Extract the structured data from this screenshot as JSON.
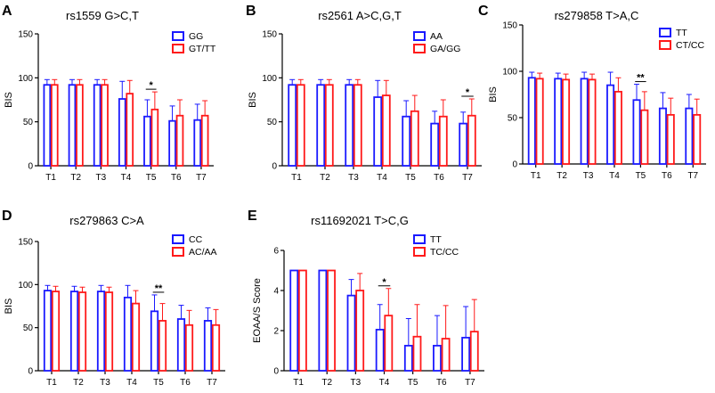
{
  "figure": {
    "colors": {
      "group1": "#1a1aff",
      "group2": "#ff1a1a",
      "axis": "#000000"
    }
  },
  "chart_data": [
    {
      "panel": "A",
      "type": "bar",
      "title": "rs1559 G>C,T",
      "xlabel": "",
      "ylabel": "BIS",
      "ylim": [
        0,
        150
      ],
      "yticks": [
        0,
        50,
        100,
        150
      ],
      "categories": [
        "T1",
        "T2",
        "T3",
        "T4",
        "T5",
        "T6",
        "T7"
      ],
      "series": [
        {
          "name": "GG",
          "values": [
            92,
            92,
            92,
            76,
            56,
            51,
            52
          ],
          "errors": [
            6,
            6,
            6,
            20,
            19,
            17,
            18
          ]
        },
        {
          "name": "GT/TT",
          "values": [
            92,
            92,
            92,
            82,
            64,
            57,
            57
          ],
          "errors": [
            6,
            6,
            6,
            15,
            20,
            18,
            17
          ]
        }
      ],
      "annotations": [
        {
          "category": "T5",
          "text": "*"
        }
      ]
    },
    {
      "panel": "B",
      "type": "bar",
      "title": "rs2561 A>C,G,T",
      "xlabel": "",
      "ylabel": "BIS",
      "ylim": [
        0,
        150
      ],
      "yticks": [
        0,
        50,
        100,
        150
      ],
      "categories": [
        "T1",
        "T2",
        "T3",
        "T4",
        "T5",
        "T6",
        "T7"
      ],
      "series": [
        {
          "name": "AA",
          "values": [
            92,
            92,
            92,
            78,
            56,
            48,
            48
          ],
          "errors": [
            6,
            6,
            6,
            19,
            18,
            14,
            13
          ]
        },
        {
          "name": "GA/GG",
          "values": [
            92,
            92,
            92,
            80,
            62,
            56,
            57
          ],
          "errors": [
            6,
            6,
            6,
            17,
            18,
            19,
            19
          ]
        }
      ],
      "annotations": [
        {
          "category": "T7",
          "text": "*"
        }
      ]
    },
    {
      "panel": "C",
      "type": "bar",
      "title": "rs279858 T>A,C",
      "xlabel": "",
      "ylabel": "BIS",
      "ylim": [
        0,
        150
      ],
      "yticks": [
        0,
        50,
        100,
        150
      ],
      "categories": [
        "T1",
        "T2",
        "T3",
        "T4",
        "T5",
        "T6",
        "T7"
      ],
      "series": [
        {
          "name": "TT",
          "values": [
            93,
            92,
            92,
            85,
            69,
            60,
            60
          ],
          "errors": [
            6,
            6,
            7,
            14,
            17,
            17,
            15
          ]
        },
        {
          "name": "CT/CC",
          "values": [
            92,
            91,
            91,
            78,
            58,
            53,
            53
          ],
          "errors": [
            6,
            6,
            6,
            15,
            20,
            18,
            17
          ]
        }
      ],
      "annotations": [
        {
          "category": "T5",
          "text": "**"
        }
      ]
    },
    {
      "panel": "D",
      "type": "bar",
      "title": "rs279863 C>A",
      "xlabel": "",
      "ylabel": "BIS",
      "ylim": [
        0,
        150
      ],
      "yticks": [
        0,
        50,
        100,
        150
      ],
      "categories": [
        "T1",
        "T2",
        "T3",
        "T4",
        "T5",
        "T6",
        "T7"
      ],
      "series": [
        {
          "name": "CC",
          "values": [
            93,
            92,
            92,
            85,
            69,
            60,
            58
          ],
          "errors": [
            6,
            6,
            7,
            14,
            19,
            16,
            15
          ]
        },
        {
          "name": "AC/AA",
          "values": [
            92,
            91,
            91,
            78,
            58,
            53,
            53
          ],
          "errors": [
            6,
            6,
            6,
            15,
            20,
            17,
            18
          ]
        }
      ],
      "annotations": [
        {
          "category": "T5",
          "text": "**"
        }
      ]
    },
    {
      "panel": "E",
      "type": "bar",
      "title": "rs11692021 T>C,G",
      "xlabel": "",
      "ylabel": "EOAA/S Score",
      "ylim": [
        0,
        6
      ],
      "yticks": [
        0,
        2,
        4,
        6
      ],
      "categories": [
        "T1",
        "T2",
        "T3",
        "T4",
        "T5",
        "T6",
        "T7"
      ],
      "series": [
        {
          "name": "TT",
          "values": [
            5,
            5,
            3.75,
            2.05,
            1.25,
            1.25,
            1.65
          ],
          "errors": [
            0,
            0,
            0.8,
            1.25,
            1.35,
            1.5,
            1.55
          ]
        },
        {
          "name": "TC/CC",
          "values": [
            5,
            5,
            4.0,
            2.75,
            1.7,
            1.6,
            1.95
          ],
          "errors": [
            0,
            0,
            0.85,
            1.35,
            1.6,
            1.65,
            1.6
          ]
        }
      ],
      "annotations": [
        {
          "category": "T4",
          "text": "*"
        }
      ]
    }
  ]
}
